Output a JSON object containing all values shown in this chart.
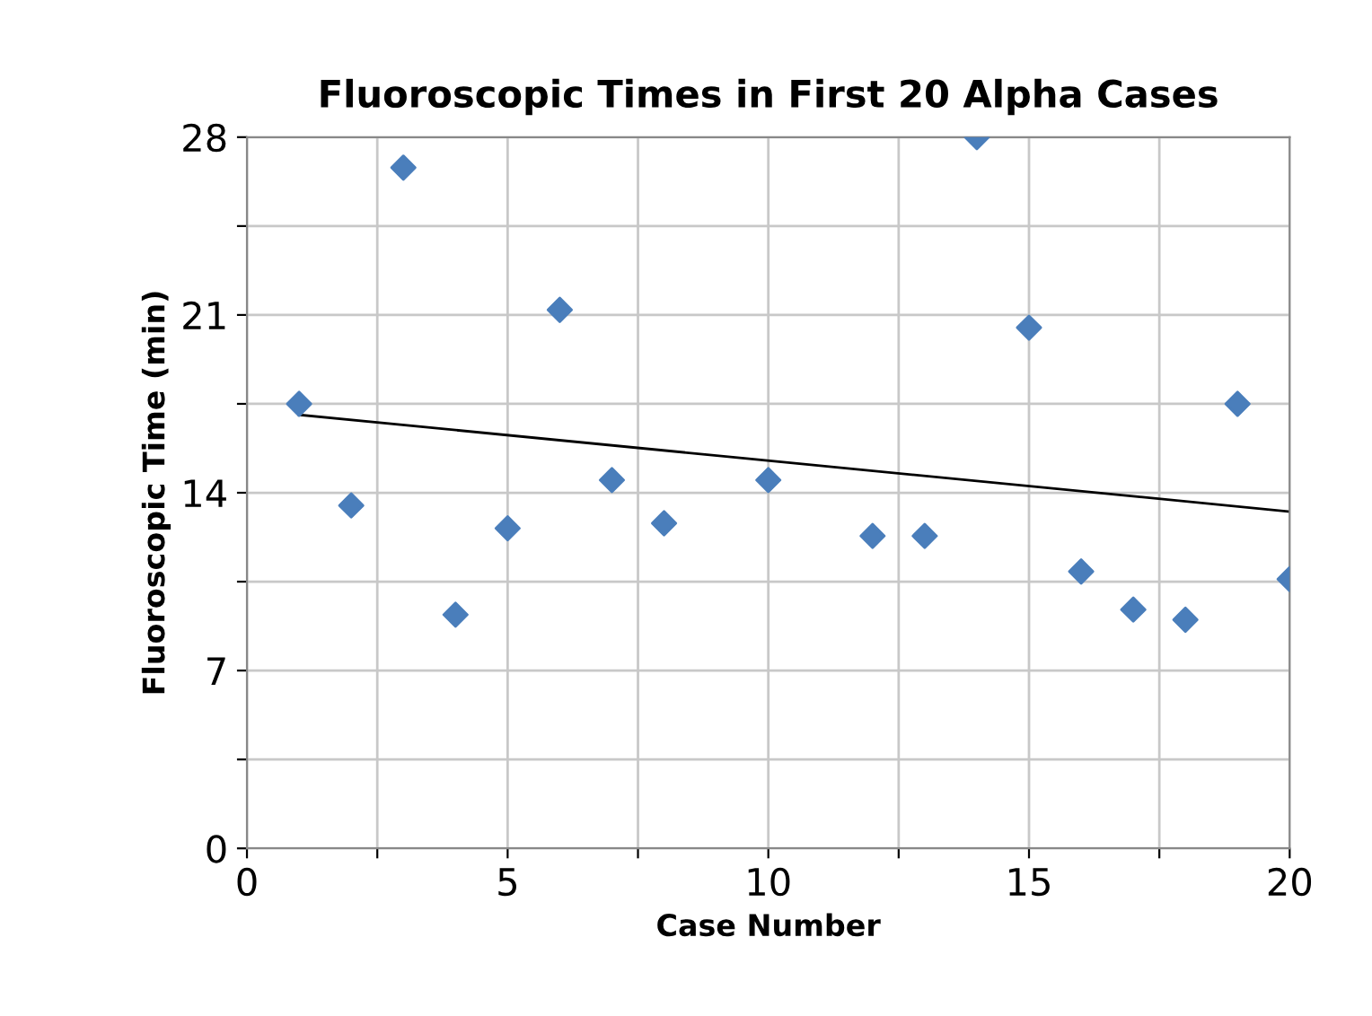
{
  "chart_data": {
    "type": "scatter",
    "title": "Fluoroscopic Times in First 20 Alpha Cases",
    "xlabel": "Case Number",
    "ylabel": "Fluoroscopic Time (min)",
    "series": [
      {
        "color": "#4a7ebb",
        "marker": "diamond",
        "x": [
          1,
          2,
          3,
          4,
          5,
          6,
          7,
          8,
          10,
          12,
          13,
          14,
          15,
          16,
          17,
          18,
          19,
          20
        ],
        "values": [
          17.5,
          13.5,
          26.8,
          9.2,
          12.6,
          21.2,
          14.5,
          12.8,
          14.5,
          12.3,
          12.3,
          28.0,
          20.5,
          10.9,
          9.4,
          9.0,
          17.5,
          10.6
        ]
      },
      {
        "type": "line",
        "color": "#000000",
        "marker": "none",
        "x": [
          1,
          20
        ],
        "values": [
          17.07,
          13.26
        ]
      }
    ],
    "xlim": [
      0,
      20
    ],
    "ylim": [
      0,
      28
    ],
    "xticks": [
      0,
      {
        "value": 2.5,
        "label": null
      },
      5,
      {
        "value": 7.5,
        "label": null
      },
      10,
      {
        "value": 12.5,
        "label": null
      },
      15,
      {
        "value": 17.5,
        "label": null
      },
      20
    ],
    "yticks": [
      0,
      {
        "value": 3.5,
        "label": null
      },
      7,
      {
        "value": 10.5,
        "label": null
      },
      14,
      {
        "value": 17.5,
        "label": null
      },
      21,
      {
        "value": 24.5,
        "label": null
      },
      28
    ],
    "grid": true,
    "legend": false
  }
}
